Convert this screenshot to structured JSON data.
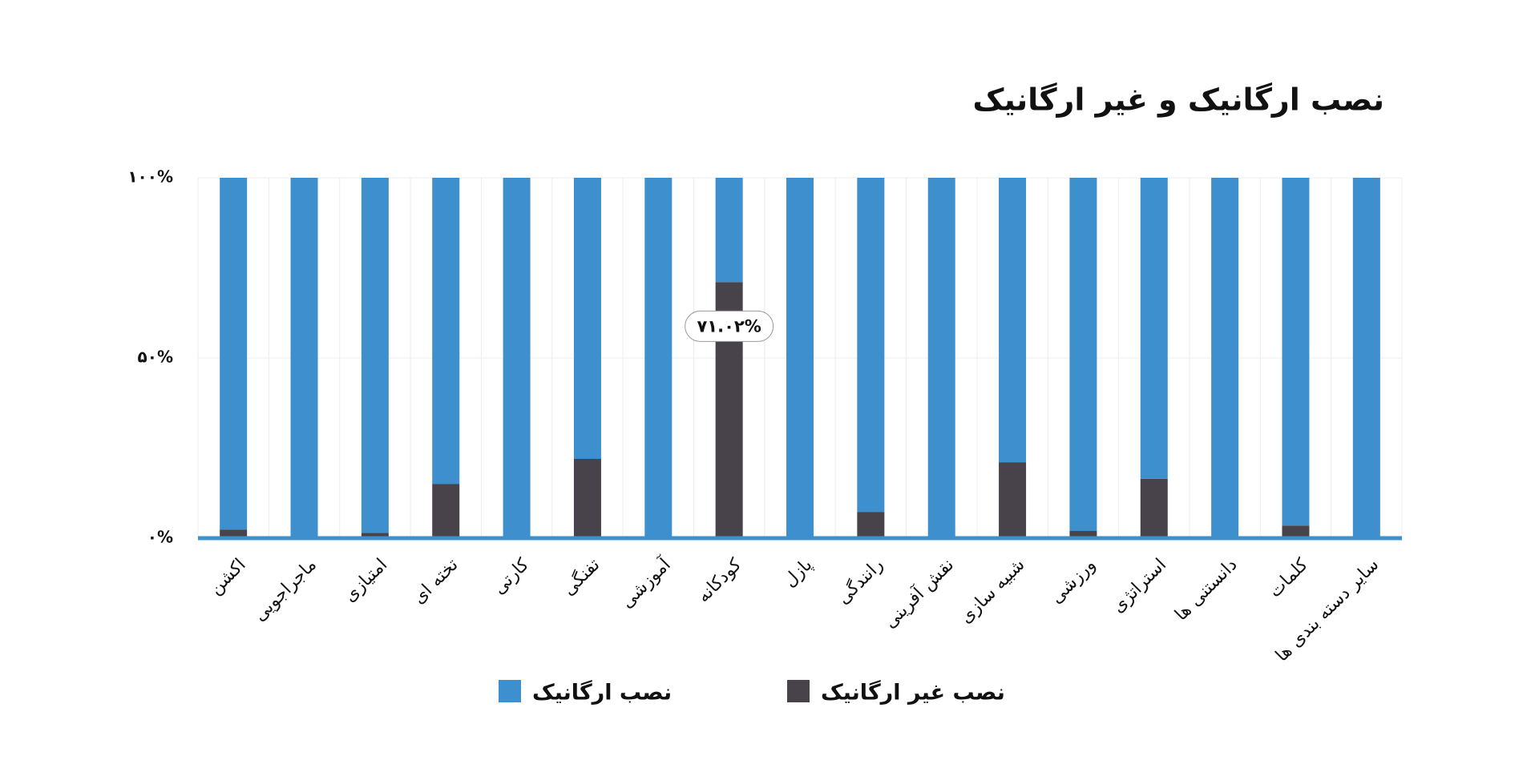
{
  "chart_data": {
    "type": "stacked_bar",
    "title": "نصب ارگانیک و غیر ارگانیک",
    "categories": [
      "اکشن",
      "ماجراجویی",
      "امتیازی",
      "تخته ای",
      "کارتی",
      "تفنگی",
      "آموزشی",
      "کودکانه",
      "پازل",
      "رانندگی",
      "نقش آفرینی",
      "شبیه سازی",
      "ورزشی",
      "استراتژی",
      "دانستنی ها",
      "کلمات",
      "سایر دسته بندی ها"
    ],
    "series": [
      {
        "name": "نصب غیر ارگانیک",
        "color": "#48434a",
        "values": [
          2.4,
          0,
          1.5,
          15,
          0,
          22,
          0,
          71.02,
          0,
          7.3,
          0,
          21,
          2,
          16.5,
          0,
          3.5,
          0
        ],
        "value_labels": [
          null,
          null,
          null,
          null,
          null,
          null,
          null,
          "۷۱.۰۲%",
          null,
          null,
          null,
          null,
          null,
          null,
          null,
          null,
          null
        ]
      },
      {
        "name": "نصب ارگانیک",
        "color": "#3d8fce",
        "values": [
          97.6,
          100,
          98.5,
          85,
          100,
          78,
          100,
          28.98,
          100,
          92.7,
          100,
          79,
          98,
          83.5,
          100,
          96.5,
          100
        ]
      }
    ],
    "legend_order": [
      1,
      0
    ],
    "ylim": [
      0,
      100
    ],
    "yticks": [
      {
        "value": 0,
        "label": "۰%"
      },
      {
        "value": 50,
        "label": "۵۰%"
      },
      {
        "value": 100,
        "label": "۱۰۰%"
      }
    ],
    "grid": true
  }
}
